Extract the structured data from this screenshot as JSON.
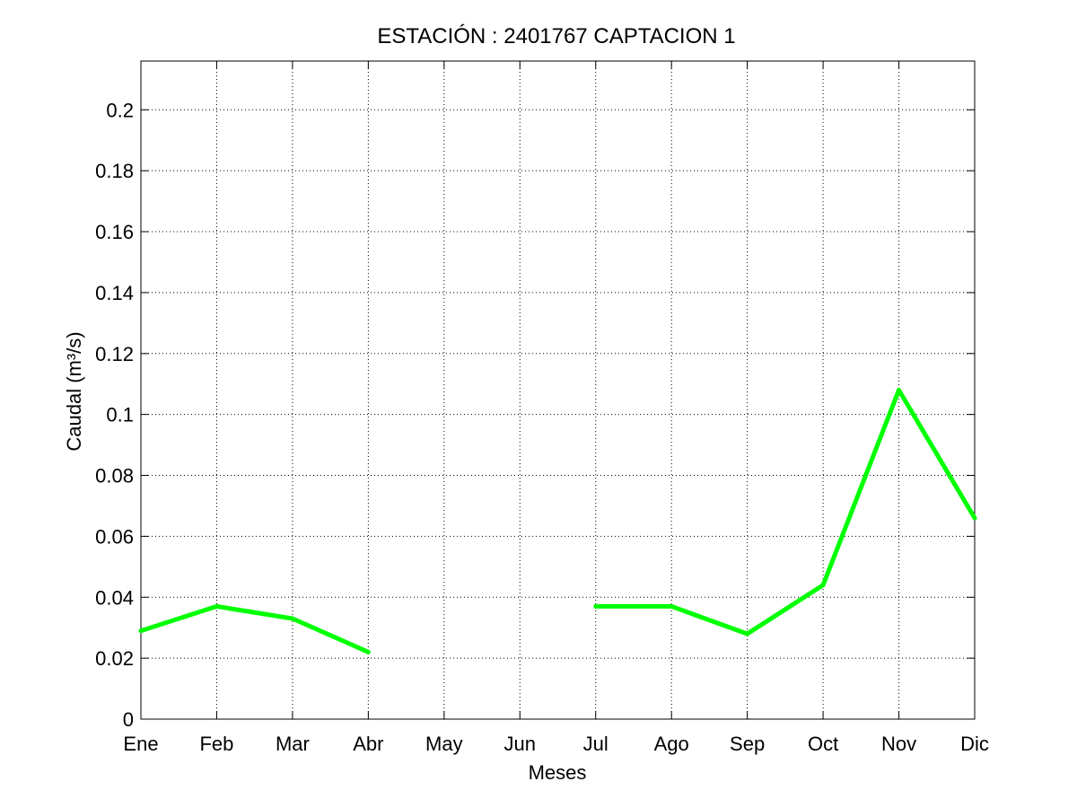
{
  "chart_data": {
    "type": "line",
    "title": "ESTACIÓN :  2401767  CAPTACION 1",
    "xlabel": "Meses",
    "ylabel": "Caudal (m³/s)",
    "categories": [
      "Ene",
      "Feb",
      "Mar",
      "Abr",
      "May",
      "Jun",
      "Jul",
      "Ago",
      "Sep",
      "Oct",
      "Nov",
      "Dic"
    ],
    "y_ticks": [
      "0",
      "0.02",
      "0.04",
      "0.06",
      "0.08",
      "0.1",
      "0.12",
      "0.14",
      "0.16",
      "0.18",
      "0.2"
    ],
    "ylim": [
      0,
      0.216
    ],
    "grid": true,
    "series": [
      {
        "values": [
          0.029,
          0.037,
          0.033,
          0.022,
          null,
          null,
          0.037,
          0.037,
          0.028,
          0.044,
          0.108,
          0.066
        ],
        "color": "#00ff00"
      }
    ]
  }
}
